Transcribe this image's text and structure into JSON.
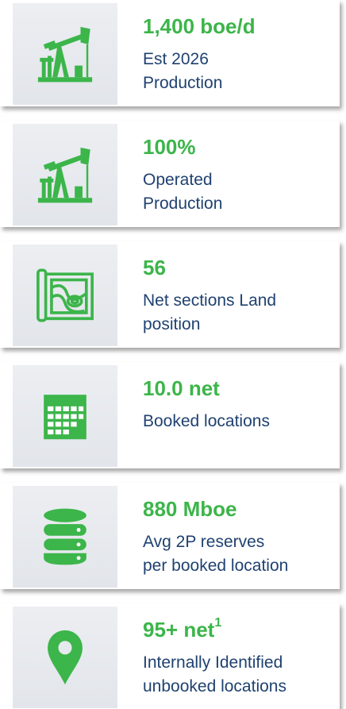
{
  "cards": [
    {
      "value": "1,400 boe/d",
      "lines": [
        "Est 2026",
        "Production"
      ]
    },
    {
      "value": "100%",
      "lines": [
        "Operated",
        "Production"
      ]
    },
    {
      "value": "56",
      "lines": [
        "Net sections Land",
        "position"
      ]
    },
    {
      "value": "10.0 net",
      "lines": [
        "Booked locations"
      ]
    },
    {
      "value": "880 Mboe",
      "lines": [
        "Avg 2P reserves",
        "per booked location"
      ]
    },
    {
      "value": "95+ net",
      "superscript": "1",
      "lines": [
        "Internally Identified",
        "unbooked locations"
      ]
    }
  ]
}
